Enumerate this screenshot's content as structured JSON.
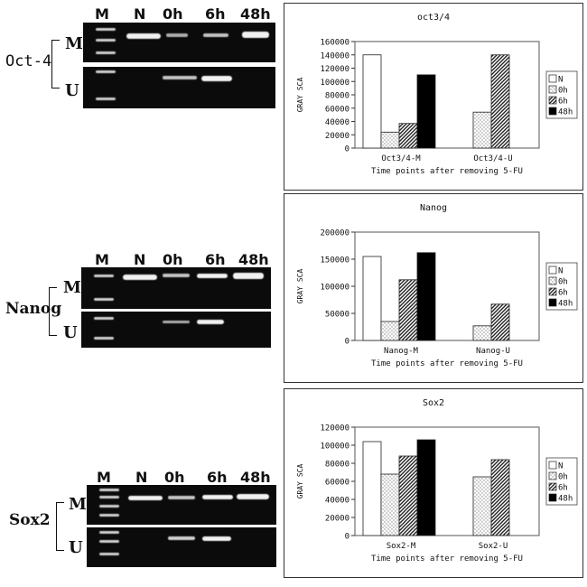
{
  "lane_headers": [
    "M",
    "N",
    "0h",
    "6h",
    "48h"
  ],
  "row_labels": {
    "methylated": "M",
    "unmethylated": "U"
  },
  "genes": [
    {
      "name": "Oct-4"
    },
    {
      "name": "Nanog"
    },
    {
      "name": "Sox2"
    }
  ],
  "legend_items": [
    "N",
    "0h",
    "6h",
    "48h"
  ],
  "chart_data": [
    {
      "type": "bar",
      "title": "oct3/4",
      "xlabel": "Time points after removing 5-FU",
      "ylabel": "GRAY SCA",
      "categories": [
        "Oct3/4-M",
        "Oct3/4-U"
      ],
      "ylim": [
        0,
        160000
      ],
      "yticks": [
        0,
        20000,
        40000,
        60000,
        80000,
        100000,
        120000,
        140000,
        160000
      ],
      "series": [
        {
          "name": "N",
          "values": [
            140000,
            0
          ]
        },
        {
          "name": "0h",
          "values": [
            24000,
            54000
          ]
        },
        {
          "name": "6h",
          "values": [
            37000,
            140000
          ]
        },
        {
          "name": "48h",
          "values": [
            110000,
            0
          ]
        }
      ],
      "grid": false,
      "legend": "right"
    },
    {
      "type": "bar",
      "title": "Nanog",
      "xlabel": "Time points after removing 5-FU",
      "ylabel": "GRAY SCA",
      "categories": [
        "Nanog-M",
        "Nanog-U"
      ],
      "ylim": [
        0,
        200000
      ],
      "yticks": [
        0,
        50000,
        100000,
        150000,
        200000
      ],
      "series": [
        {
          "name": "N",
          "values": [
            155000,
            0
          ]
        },
        {
          "name": "0h",
          "values": [
            35000,
            27000
          ]
        },
        {
          "name": "6h",
          "values": [
            112000,
            67000
          ]
        },
        {
          "name": "48h",
          "values": [
            162000,
            0
          ]
        }
      ],
      "grid": false,
      "legend": "right"
    },
    {
      "type": "bar",
      "title": "Sox2",
      "xlabel": "Time points after removing 5-FU",
      "ylabel": "GRAY SCA",
      "categories": [
        "Sox2-M",
        "Sox2-U"
      ],
      "ylim": [
        0,
        120000
      ],
      "yticks": [
        0,
        20000,
        40000,
        60000,
        80000,
        100000,
        120000
      ],
      "series": [
        {
          "name": "N",
          "values": [
            104000,
            0
          ]
        },
        {
          "name": "0h",
          "values": [
            68000,
            65000
          ]
        },
        {
          "name": "6h",
          "values": [
            88000,
            84000
          ]
        },
        {
          "name": "48h",
          "values": [
            106000,
            0
          ]
        }
      ],
      "grid": false,
      "legend": "right"
    }
  ],
  "colors": {
    "N": "#ffffff",
    "0h": "#d8d8d8",
    "6h": "#555555",
    "48h": "#000000"
  }
}
